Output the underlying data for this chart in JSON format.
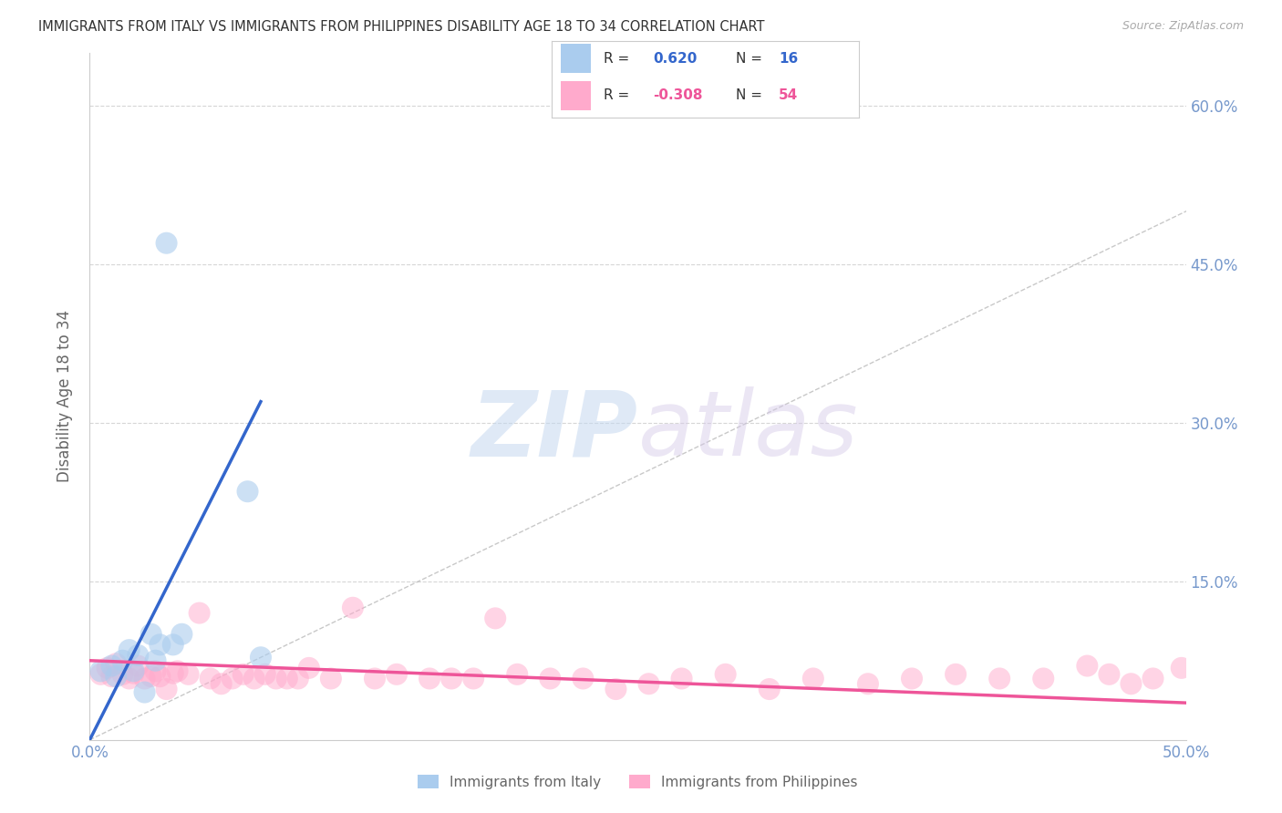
{
  "title": "IMMIGRANTS FROM ITALY VS IMMIGRANTS FROM PHILIPPINES DISABILITY AGE 18 TO 34 CORRELATION CHART",
  "source": "Source: ZipAtlas.com",
  "ylabel": "Disability Age 18 to 34",
  "xlim": [
    0.0,
    0.5
  ],
  "ylim": [
    0.0,
    0.65
  ],
  "xticks": [
    0.0,
    0.1,
    0.2,
    0.3,
    0.4,
    0.5
  ],
  "xticklabels": [
    "0.0%",
    "",
    "",
    "",
    "",
    "50.0%"
  ],
  "yticks": [
    0.0,
    0.15,
    0.3,
    0.45,
    0.6
  ],
  "right_yticklabels": [
    "",
    "15.0%",
    "30.0%",
    "45.0%",
    "60.0%"
  ],
  "italy_color": "#aaccee",
  "philippines_color": "#ffaacc",
  "italy_line_color": "#3366cc",
  "philippines_line_color": "#ee5599",
  "diagonal_color": "#bbbbbb",
  "watermark_zip": "ZIP",
  "watermark_atlas": "atlas",
  "legend_italy_r": "0.620",
  "legend_italy_n": "16",
  "legend_phil_r": "-0.308",
  "legend_phil_n": "54",
  "italy_scatter_x": [
    0.005,
    0.01,
    0.012,
    0.015,
    0.018,
    0.02,
    0.022,
    0.025,
    0.028,
    0.03,
    0.032,
    0.035,
    0.038,
    0.042,
    0.072,
    0.078
  ],
  "italy_scatter_y": [
    0.065,
    0.07,
    0.06,
    0.075,
    0.085,
    0.065,
    0.08,
    0.045,
    0.1,
    0.075,
    0.09,
    0.47,
    0.09,
    0.1,
    0.235,
    0.078
  ],
  "philippines_scatter_x": [
    0.005,
    0.008,
    0.01,
    0.012,
    0.015,
    0.018,
    0.02,
    0.022,
    0.025,
    0.028,
    0.03,
    0.032,
    0.035,
    0.038,
    0.04,
    0.045,
    0.05,
    0.055,
    0.06,
    0.065,
    0.07,
    0.075,
    0.08,
    0.085,
    0.09,
    0.095,
    0.1,
    0.11,
    0.12,
    0.13,
    0.14,
    0.155,
    0.165,
    0.175,
    0.185,
    0.195,
    0.21,
    0.225,
    0.24,
    0.255,
    0.27,
    0.29,
    0.31,
    0.33,
    0.355,
    0.375,
    0.395,
    0.415,
    0.435,
    0.455,
    0.465,
    0.475,
    0.485,
    0.498
  ],
  "philippines_scatter_y": [
    0.062,
    0.068,
    0.06,
    0.072,
    0.062,
    0.058,
    0.063,
    0.07,
    0.058,
    0.06,
    0.065,
    0.06,
    0.048,
    0.063,
    0.065,
    0.062,
    0.12,
    0.058,
    0.053,
    0.058,
    0.062,
    0.058,
    0.062,
    0.058,
    0.058,
    0.058,
    0.068,
    0.058,
    0.125,
    0.058,
    0.062,
    0.058,
    0.058,
    0.058,
    0.115,
    0.062,
    0.058,
    0.058,
    0.048,
    0.053,
    0.058,
    0.062,
    0.048,
    0.058,
    0.053,
    0.058,
    0.062,
    0.058,
    0.058,
    0.07,
    0.062,
    0.053,
    0.058,
    0.068
  ],
  "italy_trend_x0": 0.0,
  "italy_trend_y0": 0.0,
  "italy_trend_x1": 0.078,
  "italy_trend_y1": 0.32,
  "philippines_trend_x0": 0.0,
  "philippines_trend_y0": 0.075,
  "philippines_trend_x1": 0.5,
  "philippines_trend_y1": 0.035,
  "background_color": "#ffffff",
  "grid_color": "#cccccc",
  "title_color": "#333333",
  "axis_color": "#7799cc"
}
